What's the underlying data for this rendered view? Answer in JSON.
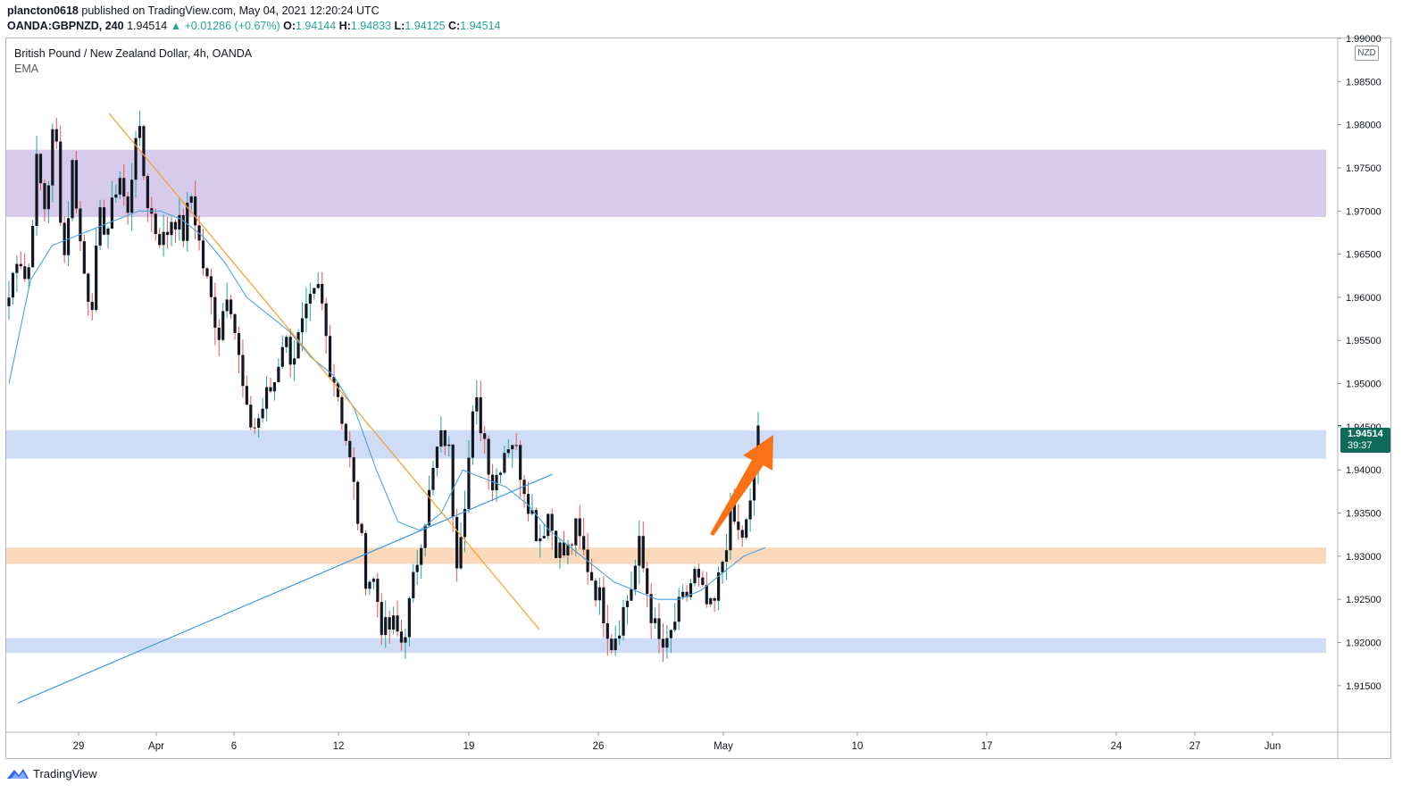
{
  "header": {
    "publisher": "plancton0618",
    "published_text": "published on TradingView.com, May 04, 2021 12:20:24 UTC"
  },
  "quote": {
    "symbol": "OANDA:GBPNZD, 240",
    "last": "1.94514",
    "change": "+0.01286 (+0.67%)",
    "open_label": "O:",
    "open": "1.94144",
    "high_label": "H:",
    "high": "1.94833",
    "low_label": "L:",
    "low": "1.94125",
    "close_label": "C:",
    "close": "1.94514"
  },
  "legend": {
    "title": "British Pound / New Zealand Dollar, 4h, OANDA",
    "indicator": "EMA"
  },
  "currency_badge": "NZD",
  "price_tag": {
    "price": "1.94514",
    "countdown": "39:37"
  },
  "brand": "TradingView",
  "colors": {
    "bull": "#26a69a",
    "bear": "#ef5350",
    "candle_body": "#131722",
    "ema": "#4aa3df",
    "downtrend_line": "#f7a02b",
    "uptrend_line": "#3d9be0",
    "resistance_zone": "#d6cbeb",
    "support_zone_blue": "#cfdcf5",
    "support_zone_orange": "#fad9bc",
    "arrow": "#f97316"
  },
  "chart_data": {
    "type": "candlestick",
    "title": "British Pound / New Zealand Dollar, 4h, OANDA",
    "y_axis": {
      "ticks": [
        "1.91500",
        "1.92000",
        "1.92500",
        "1.93000",
        "1.93500",
        "1.94000",
        "1.94500",
        "1.95000",
        "1.95500",
        "1.96000",
        "1.96500",
        "1.97000",
        "1.97500",
        "1.98000",
        "1.98500",
        "1.99000"
      ],
      "range": [
        1.9096,
        1.99
      ]
    },
    "x_axis": {
      "ticks": [
        "29",
        "Apr",
        "6",
        "12",
        "19",
        "26",
        "May",
        "10",
        "17",
        "24",
        "27",
        "Jun"
      ]
    },
    "last_price": 1.94514,
    "zones": [
      {
        "name": "resistance",
        "from": 1.9693,
        "to": 1.9771
      },
      {
        "name": "support-upper",
        "from": 1.9413,
        "to": 1.9446
      },
      {
        "name": "support-middle",
        "from": 1.9291,
        "to": 1.931
      },
      {
        "name": "support-lower",
        "from": 1.9188,
        "to": 1.9205
      }
    ],
    "trendlines": [
      {
        "name": "downtrend",
        "from": [
          "Apr 1",
          1.9813
        ],
        "to": [
          "May 4",
          1.9215
        ]
      },
      {
        "name": "uptrend",
        "from": [
          "Mar 25",
          1.913
        ],
        "to": [
          "May 5",
          1.9395
        ]
      }
    ],
    "ohlc_path": [
      1.96,
      1.966,
      1.961,
      1.9755,
      1.97,
      1.981,
      1.964,
      1.976,
      1.964,
      1.959,
      1.969,
      1.968,
      1.975,
      1.969,
      1.981,
      1.972,
      1.968,
      1.9665,
      1.97,
      1.967,
      1.972,
      1.965,
      1.96,
      1.956,
      1.962,
      1.954,
      1.946,
      1.945,
      1.948,
      1.95,
      1.9555,
      1.953,
      1.956,
      1.959,
      1.961,
      1.953,
      1.949,
      1.943,
      1.936,
      1.928,
      1.927,
      1.921,
      1.922,
      1.92,
      1.925,
      1.932,
      1.937,
      1.943,
      1.944,
      1.93,
      1.938,
      1.948,
      1.944,
      1.938,
      1.942,
      1.944,
      1.94,
      1.936,
      1.932,
      1.935,
      1.931,
      1.93,
      1.933,
      1.93,
      1.927,
      1.924,
      1.92,
      1.923,
      1.926,
      1.931,
      1.925,
      1.92,
      1.919,
      1.923,
      1.925,
      1.928,
      1.925,
      1.923,
      1.929,
      1.935,
      1.932,
      1.934,
      1.9451
    ],
    "ema_path": [
      1.95,
      1.962,
      1.966,
      1.967,
      1.968,
      1.969,
      1.97,
      1.97,
      1.969,
      1.967,
      1.964,
      1.96,
      1.958,
      1.956,
      1.953,
      1.951,
      1.947,
      1.94,
      1.934,
      1.933,
      1.935,
      1.94,
      1.939,
      1.938,
      1.936,
      1.933,
      1.931,
      1.929,
      1.927,
      1.926,
      1.925,
      1.925,
      1.926,
      1.928,
      1.93,
      1.931
    ]
  }
}
